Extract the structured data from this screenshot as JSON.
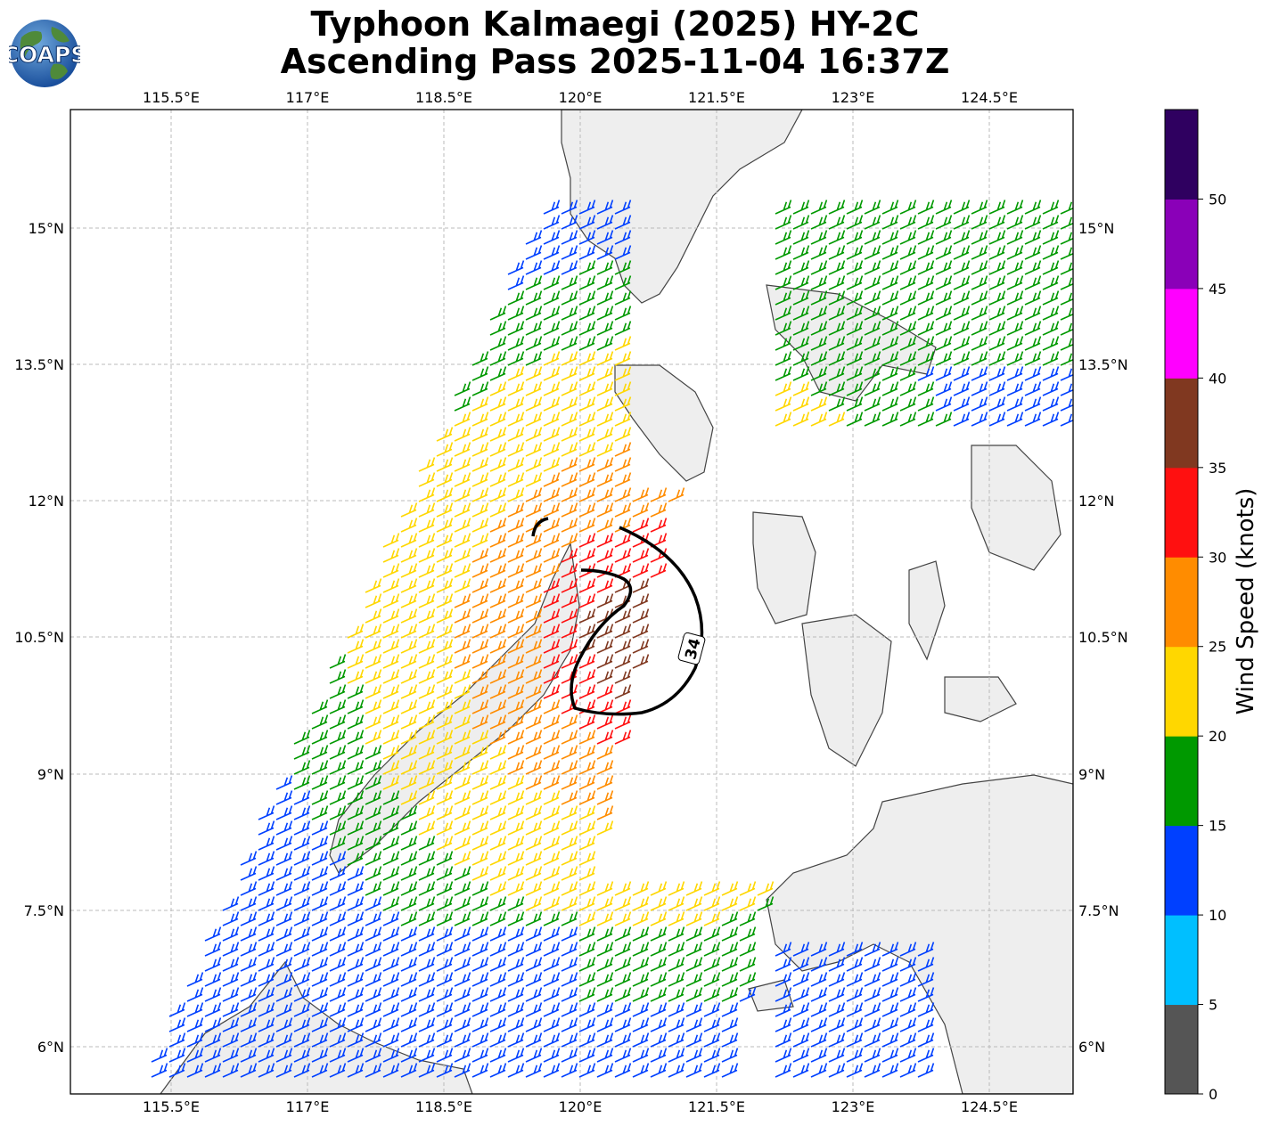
{
  "title": {
    "line1": "Typhoon Kalmaegi (2025) HY-2C",
    "line2": "Ascending Pass 2025-11-04 16:37Z"
  },
  "logo": {
    "text": "COAPS",
    "icon": "globe-icon"
  },
  "map": {
    "lon_ticks": [
      "115.5°E",
      "117°E",
      "118.5°E",
      "120°E",
      "121.5°E",
      "123°E",
      "124.5°E"
    ],
    "lat_ticks": [
      "15°N",
      "13.5°N",
      "12°N",
      "10.5°N",
      "9°N",
      "7.5°N",
      "6°N"
    ],
    "contour_label": "34"
  },
  "colorbar": {
    "label": "Wind Speed (knots)",
    "ticks": [
      "0",
      "5",
      "10",
      "15",
      "20",
      "25",
      "30",
      "35",
      "40",
      "45",
      "50"
    ],
    "colors": [
      "#555555",
      "#00bfff",
      "#0040ff",
      "#009900",
      "#ffd700",
      "#ff8c00",
      "#ff1010",
      "#803820",
      "#ff00ff",
      "#8a00b8",
      "#2f0060"
    ]
  }
}
